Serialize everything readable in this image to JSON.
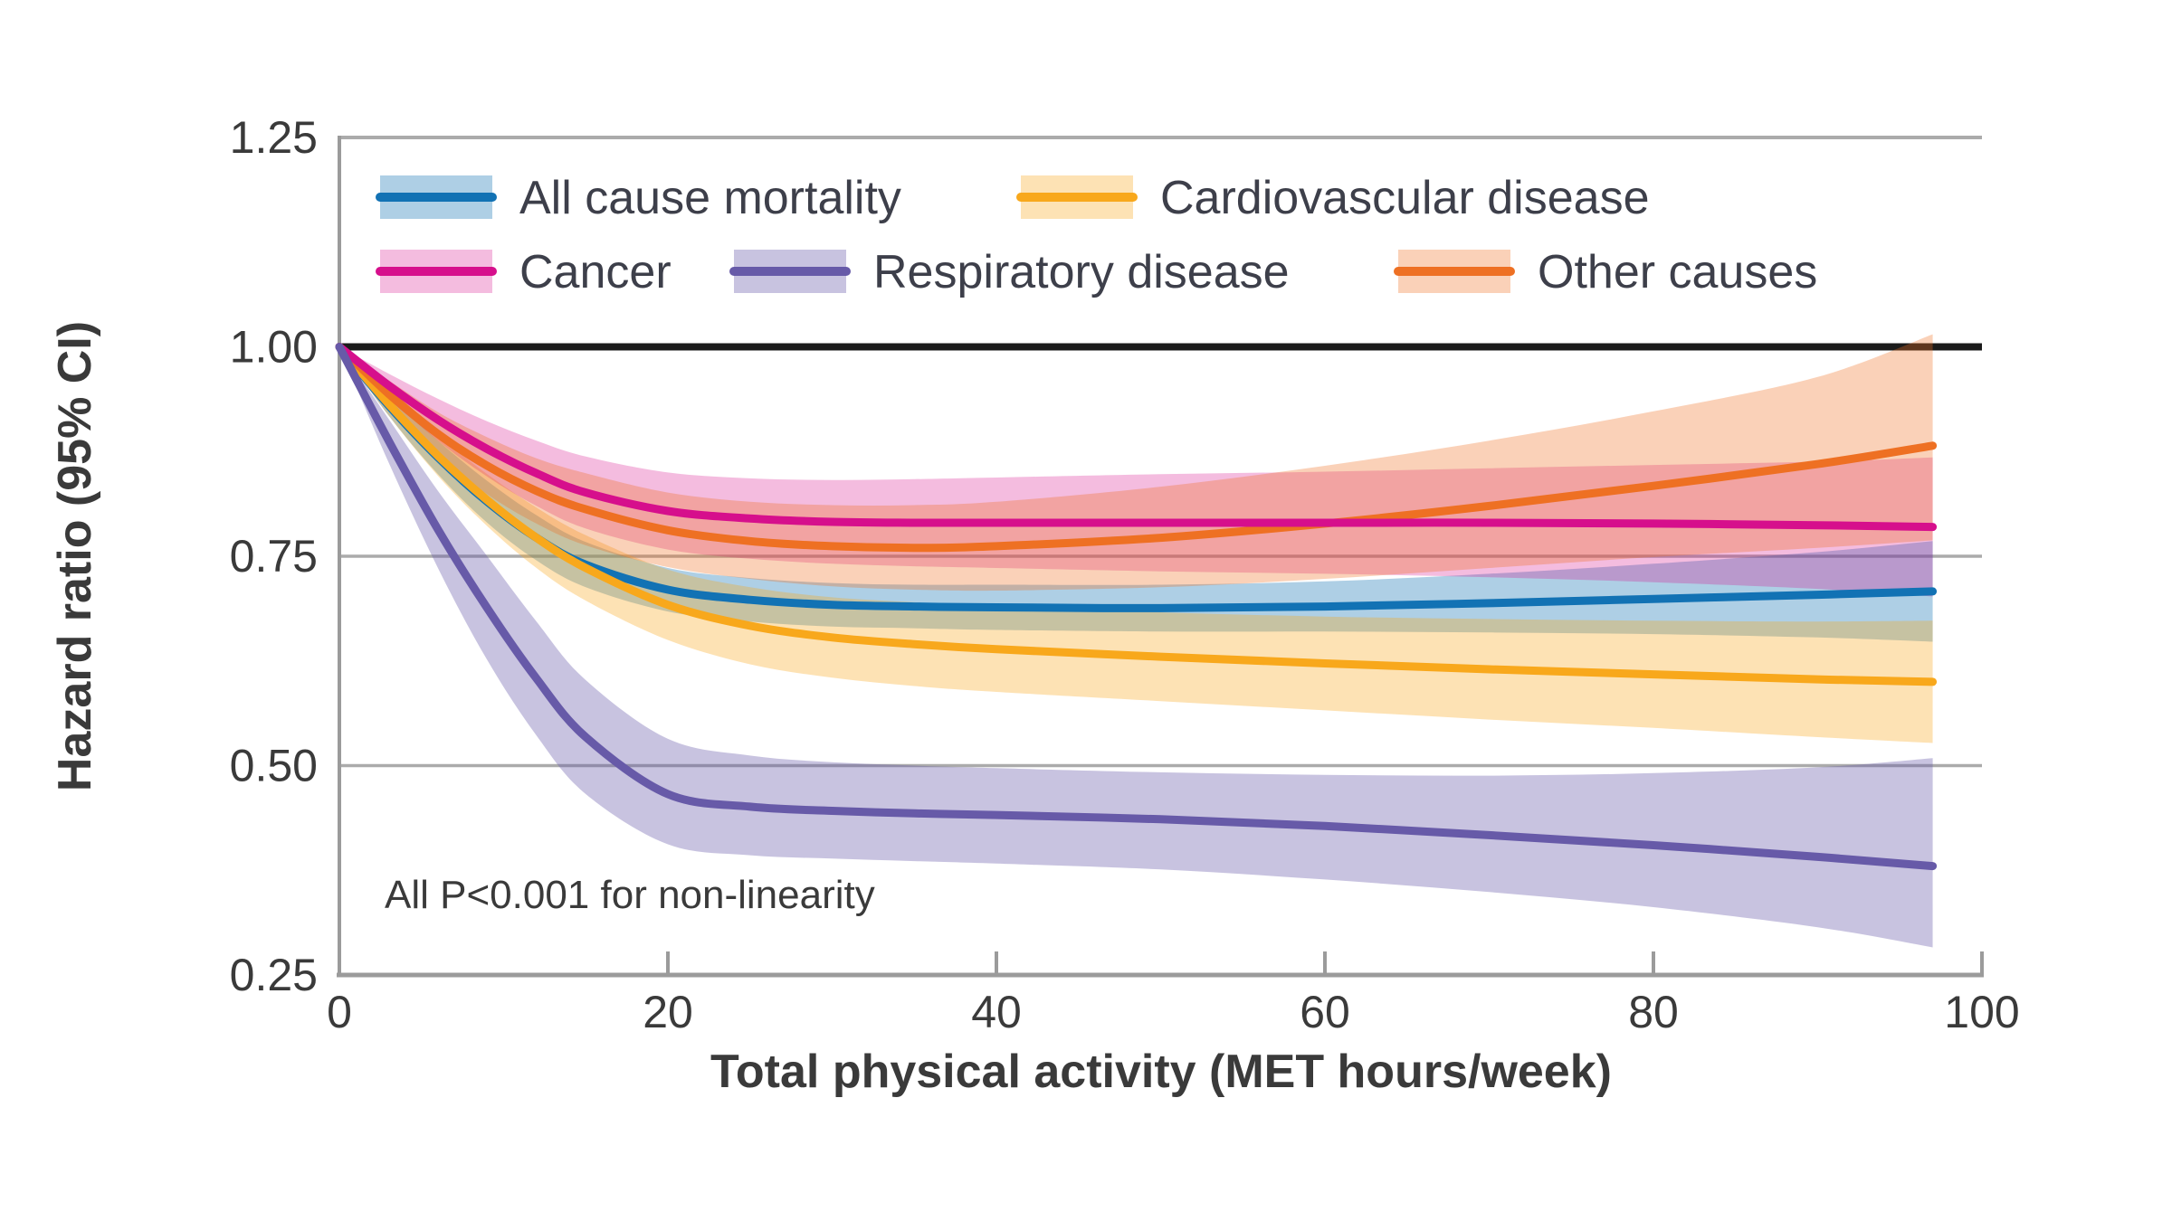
{
  "chart_data": {
    "type": "line",
    "title": "",
    "xlabel": "Total physical activity (MET hours/week)",
    "ylabel": "Hazard ratio (95% CI)",
    "annotation": "All P<0.001 for non-linearity",
    "xlim": [
      0,
      100
    ],
    "ylim": [
      0.25,
      1.25
    ],
    "xticks": [
      0,
      20,
      40,
      60,
      80,
      100
    ],
    "xtick_labels": [
      "0",
      "20",
      "40",
      "60",
      "80",
      "100"
    ],
    "ytick_values": [
      1.25,
      1.0,
      0.75,
      0.5,
      0.25
    ],
    "ytick_labels": [
      "1.25",
      "1.00",
      "0.75",
      "0.50",
      "0.25"
    ],
    "reference_line": 1.0,
    "grid": "horizontal-at-0.75-and-0.50",
    "legend_position": "top-left-inside",
    "curve_x_start": 0,
    "curve_x_end": 97,
    "x": [
      0,
      3,
      6,
      9,
      12,
      15,
      20,
      25,
      30,
      35,
      40,
      50,
      60,
      70,
      80,
      90,
      97
    ],
    "series": [
      {
        "name": "All cause mortality",
        "color": "#1272b4",
        "band_color": "rgba(18,114,180,0.34)",
        "y": [
          1.0,
          0.93,
          0.868,
          0.815,
          0.772,
          0.74,
          0.71,
          0.698,
          0.692,
          0.69,
          0.689,
          0.688,
          0.69,
          0.694,
          0.699,
          0.704,
          0.708
        ],
        "lo": [
          1.0,
          0.918,
          0.848,
          0.79,
          0.745,
          0.713,
          0.684,
          0.672,
          0.666,
          0.664,
          0.662,
          0.66,
          0.66,
          0.659,
          0.657,
          0.653,
          0.648
        ],
        "hi": [
          1.0,
          0.942,
          0.888,
          0.84,
          0.799,
          0.767,
          0.736,
          0.724,
          0.718,
          0.716,
          0.716,
          0.716,
          0.72,
          0.729,
          0.741,
          0.755,
          0.768
        ]
      },
      {
        "name": "Cardiovascular disease",
        "color": "#f8a81c",
        "band_color": "rgba(248,168,28,0.33)",
        "y": [
          1.0,
          0.932,
          0.87,
          0.817,
          0.772,
          0.736,
          0.692,
          0.667,
          0.653,
          0.645,
          0.639,
          0.63,
          0.622,
          0.615,
          0.609,
          0.603,
          0.6
        ],
        "lo": [
          1.0,
          0.918,
          0.846,
          0.786,
          0.736,
          0.697,
          0.65,
          0.621,
          0.605,
          0.595,
          0.588,
          0.577,
          0.566,
          0.555,
          0.545,
          0.534,
          0.527
        ],
        "hi": [
          1.0,
          0.946,
          0.894,
          0.848,
          0.808,
          0.775,
          0.734,
          0.713,
          0.701,
          0.695,
          0.69,
          0.683,
          0.678,
          0.675,
          0.673,
          0.672,
          0.673
        ]
      },
      {
        "name": "Cancer",
        "color": "#d60f8c",
        "band_color": "rgba(214,15,140,0.28)",
        "y": [
          1.0,
          0.954,
          0.913,
          0.878,
          0.849,
          0.826,
          0.804,
          0.795,
          0.791,
          0.79,
          0.79,
          0.79,
          0.79,
          0.79,
          0.789,
          0.787,
          0.785
        ],
        "lo": [
          1.0,
          0.94,
          0.888,
          0.845,
          0.81,
          0.783,
          0.758,
          0.747,
          0.741,
          0.738,
          0.736,
          0.732,
          0.729,
          0.725,
          0.719,
          0.711,
          0.702
        ],
        "hi": [
          1.0,
          0.968,
          0.938,
          0.911,
          0.888,
          0.869,
          0.85,
          0.843,
          0.841,
          0.842,
          0.844,
          0.848,
          0.851,
          0.855,
          0.859,
          0.863,
          0.868
        ]
      },
      {
        "name": "Respiratory disease",
        "color": "#675aa8",
        "band_color": "rgba(103,90,168,0.36)",
        "y": [
          1.0,
          0.888,
          0.782,
          0.688,
          0.604,
          0.534,
          0.466,
          0.451,
          0.446,
          0.443,
          0.441,
          0.436,
          0.428,
          0.417,
          0.405,
          0.391,
          0.38
        ],
        "lo": [
          1.0,
          0.862,
          0.736,
          0.626,
          0.536,
          0.466,
          0.406,
          0.393,
          0.389,
          0.386,
          0.383,
          0.376,
          0.364,
          0.349,
          0.331,
          0.307,
          0.283
        ],
        "hi": [
          1.0,
          0.914,
          0.828,
          0.75,
          0.672,
          0.602,
          0.532,
          0.512,
          0.504,
          0.5,
          0.497,
          0.492,
          0.489,
          0.488,
          0.491,
          0.498,
          0.509
        ]
      },
      {
        "name": "Other causes",
        "color": "#ee7023",
        "band_color": "rgba(238,112,35,0.32)",
        "y": [
          1.0,
          0.944,
          0.896,
          0.858,
          0.828,
          0.806,
          0.781,
          0.768,
          0.762,
          0.76,
          0.762,
          0.772,
          0.789,
          0.81,
          0.834,
          0.86,
          0.882
        ],
        "lo": [
          1.0,
          0.928,
          0.87,
          0.824,
          0.789,
          0.763,
          0.737,
          0.723,
          0.714,
          0.71,
          0.709,
          0.713,
          0.723,
          0.736,
          0.749,
          0.76,
          0.769
        ],
        "hi": [
          1.0,
          0.96,
          0.922,
          0.892,
          0.867,
          0.849,
          0.826,
          0.815,
          0.811,
          0.811,
          0.815,
          0.833,
          0.858,
          0.888,
          0.923,
          0.964,
          1.015
        ]
      }
    ],
    "legend_rows": [
      [
        "All cause mortality",
        "Cardiovascular disease"
      ],
      [
        "Cancer",
        "Respiratory disease",
        "Other causes"
      ]
    ],
    "line_draw_order": [
      0,
      1,
      4,
      2,
      3
    ],
    "colors": {
      "axis": "#9b9b9b",
      "grid": "#ababab",
      "reference_line": "#1b1b1b",
      "text": "#3a3a3a",
      "legend_text": "#3d3f4a",
      "background": "#ffffff"
    }
  }
}
